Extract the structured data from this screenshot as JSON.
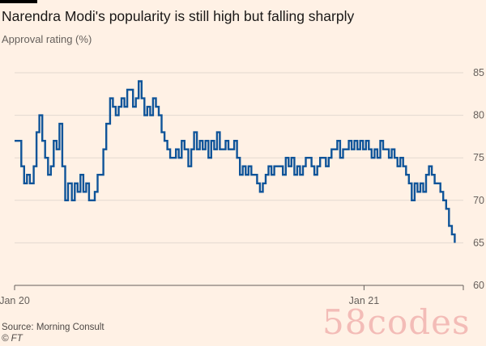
{
  "header": {
    "title": "Narendra Modi's popularity is still high but falling sharply",
    "subtitle": "Approval rating (%)"
  },
  "footer": {
    "source": "Source: Morning Consult",
    "credit": "© FT"
  },
  "watermark": {
    "text": "58codes"
  },
  "colors": {
    "background": "#fff1e5",
    "line": "#0f5499",
    "grid": "#e3d9d0",
    "axis_text": "#66605c"
  },
  "chart_data": {
    "type": "line",
    "title": "Narendra Modi's popularity is still high but falling sharply",
    "ylabel": "Approval rating (%)",
    "xlabel": "",
    "ylim": [
      60,
      85
    ],
    "yticks": [
      60,
      65,
      70,
      75,
      80,
      85
    ],
    "xlim": [
      "2020-01-01",
      "2021-04-15"
    ],
    "xticks": [
      {
        "date": "2020-01-01",
        "label": "Jan 20"
      },
      {
        "date": "2021-01-01",
        "label": "Jan 21"
      }
    ],
    "grid": true,
    "y_axis_position": "right",
    "series": [
      {
        "points": [
          [
            "2020-01-01",
            77
          ],
          [
            "2020-01-05",
            77
          ],
          [
            "2020-01-08",
            74
          ],
          [
            "2020-01-11",
            72
          ],
          [
            "2020-01-14",
            73
          ],
          [
            "2020-01-17",
            72
          ],
          [
            "2020-01-21",
            74
          ],
          [
            "2020-01-24",
            78
          ],
          [
            "2020-01-27",
            80
          ],
          [
            "2020-01-30",
            77
          ],
          [
            "2020-02-02",
            75
          ],
          [
            "2020-02-05",
            73
          ],
          [
            "2020-02-08",
            74
          ],
          [
            "2020-02-11",
            77
          ],
          [
            "2020-02-14",
            76
          ],
          [
            "2020-02-17",
            79
          ],
          [
            "2020-02-20",
            74
          ],
          [
            "2020-02-23",
            70
          ],
          [
            "2020-02-26",
            72
          ],
          [
            "2020-03-01",
            70
          ],
          [
            "2020-03-04",
            72
          ],
          [
            "2020-03-07",
            71
          ],
          [
            "2020-03-10",
            73
          ],
          [
            "2020-03-13",
            71
          ],
          [
            "2020-03-16",
            72
          ],
          [
            "2020-03-19",
            70
          ],
          [
            "2020-03-22",
            70
          ],
          [
            "2020-03-25",
            71
          ],
          [
            "2020-03-28",
            73
          ],
          [
            "2020-03-31",
            73
          ],
          [
            "2020-04-03",
            76
          ],
          [
            "2020-04-06",
            79
          ],
          [
            "2020-04-10",
            82
          ],
          [
            "2020-04-13",
            81
          ],
          [
            "2020-04-16",
            80
          ],
          [
            "2020-04-19",
            81
          ],
          [
            "2020-04-22",
            82
          ],
          [
            "2020-04-25",
            81
          ],
          [
            "2020-04-28",
            83
          ],
          [
            "2020-05-01",
            83
          ],
          [
            "2020-05-04",
            81
          ],
          [
            "2020-05-07",
            82
          ],
          [
            "2020-05-10",
            84
          ],
          [
            "2020-05-13",
            82
          ],
          [
            "2020-05-16",
            80
          ],
          [
            "2020-05-19",
            81
          ],
          [
            "2020-05-22",
            80
          ],
          [
            "2020-05-25",
            82
          ],
          [
            "2020-05-28",
            81
          ],
          [
            "2020-05-31",
            80
          ],
          [
            "2020-06-03",
            78
          ],
          [
            "2020-06-06",
            77
          ],
          [
            "2020-06-09",
            76
          ],
          [
            "2020-06-12",
            75
          ],
          [
            "2020-06-15",
            75
          ],
          [
            "2020-06-18",
            76
          ],
          [
            "2020-06-21",
            75
          ],
          [
            "2020-06-24",
            77
          ],
          [
            "2020-06-27",
            76
          ],
          [
            "2020-07-01",
            74
          ],
          [
            "2020-07-04",
            76
          ],
          [
            "2020-07-07",
            78
          ],
          [
            "2020-07-10",
            76
          ],
          [
            "2020-07-13",
            77
          ],
          [
            "2020-07-16",
            76
          ],
          [
            "2020-07-19",
            77
          ],
          [
            "2020-07-22",
            75
          ],
          [
            "2020-07-25",
            77
          ],
          [
            "2020-07-28",
            76
          ],
          [
            "2020-07-31",
            78
          ],
          [
            "2020-08-03",
            76
          ],
          [
            "2020-08-06",
            76
          ],
          [
            "2020-08-09",
            77
          ],
          [
            "2020-08-12",
            76
          ],
          [
            "2020-08-15",
            76
          ],
          [
            "2020-08-18",
            77
          ],
          [
            "2020-08-21",
            75
          ],
          [
            "2020-08-24",
            73
          ],
          [
            "2020-08-27",
            74
          ],
          [
            "2020-08-30",
            73
          ],
          [
            "2020-09-02",
            74
          ],
          [
            "2020-09-05",
            73
          ],
          [
            "2020-09-08",
            73
          ],
          [
            "2020-09-11",
            72
          ],
          [
            "2020-09-14",
            71
          ],
          [
            "2020-09-17",
            72
          ],
          [
            "2020-09-20",
            73
          ],
          [
            "2020-09-23",
            74
          ],
          [
            "2020-09-26",
            73
          ],
          [
            "2020-09-29",
            74
          ],
          [
            "2020-10-02",
            74
          ],
          [
            "2020-10-05",
            74
          ],
          [
            "2020-10-08",
            73
          ],
          [
            "2020-10-11",
            75
          ],
          [
            "2020-10-14",
            74
          ],
          [
            "2020-10-17",
            75
          ],
          [
            "2020-10-20",
            73
          ],
          [
            "2020-10-23",
            74
          ],
          [
            "2020-10-26",
            73
          ],
          [
            "2020-10-29",
            74
          ],
          [
            "2020-11-01",
            75
          ],
          [
            "2020-11-04",
            75
          ],
          [
            "2020-11-07",
            74
          ],
          [
            "2020-11-10",
            73
          ],
          [
            "2020-11-13",
            74
          ],
          [
            "2020-11-16",
            75
          ],
          [
            "2020-11-19",
            75
          ],
          [
            "2020-11-22",
            74
          ],
          [
            "2020-11-25",
            75
          ],
          [
            "2020-11-28",
            76
          ],
          [
            "2020-12-01",
            76
          ],
          [
            "2020-12-04",
            77
          ],
          [
            "2020-12-07",
            75
          ],
          [
            "2020-12-10",
            76
          ],
          [
            "2020-12-13",
            76
          ],
          [
            "2020-12-16",
            77
          ],
          [
            "2020-12-19",
            76
          ],
          [
            "2020-12-22",
            77
          ],
          [
            "2020-12-25",
            76
          ],
          [
            "2020-12-28",
            77
          ],
          [
            "2020-12-31",
            76
          ],
          [
            "2021-01-03",
            77
          ],
          [
            "2021-01-06",
            76
          ],
          [
            "2021-01-09",
            75
          ],
          [
            "2021-01-12",
            76
          ],
          [
            "2021-01-15",
            75
          ],
          [
            "2021-01-18",
            77
          ],
          [
            "2021-01-21",
            76
          ],
          [
            "2021-01-24",
            76
          ],
          [
            "2021-01-27",
            75
          ],
          [
            "2021-01-30",
            76
          ],
          [
            "2021-02-02",
            75
          ],
          [
            "2021-02-05",
            74
          ],
          [
            "2021-02-08",
            75
          ],
          [
            "2021-02-11",
            74
          ],
          [
            "2021-02-14",
            73
          ],
          [
            "2021-02-17",
            72
          ],
          [
            "2021-02-20",
            70
          ],
          [
            "2021-02-23",
            72
          ],
          [
            "2021-02-26",
            71
          ],
          [
            "2021-03-01",
            72
          ],
          [
            "2021-03-04",
            71
          ],
          [
            "2021-03-07",
            73
          ],
          [
            "2021-03-10",
            74
          ],
          [
            "2021-03-13",
            73
          ],
          [
            "2021-03-16",
            72
          ],
          [
            "2021-03-19",
            72
          ],
          [
            "2021-03-22",
            71
          ],
          [
            "2021-03-25",
            70
          ],
          [
            "2021-03-28",
            69
          ],
          [
            "2021-03-31",
            67
          ],
          [
            "2021-04-03",
            66
          ],
          [
            "2021-04-06",
            65
          ]
        ]
      }
    ]
  }
}
